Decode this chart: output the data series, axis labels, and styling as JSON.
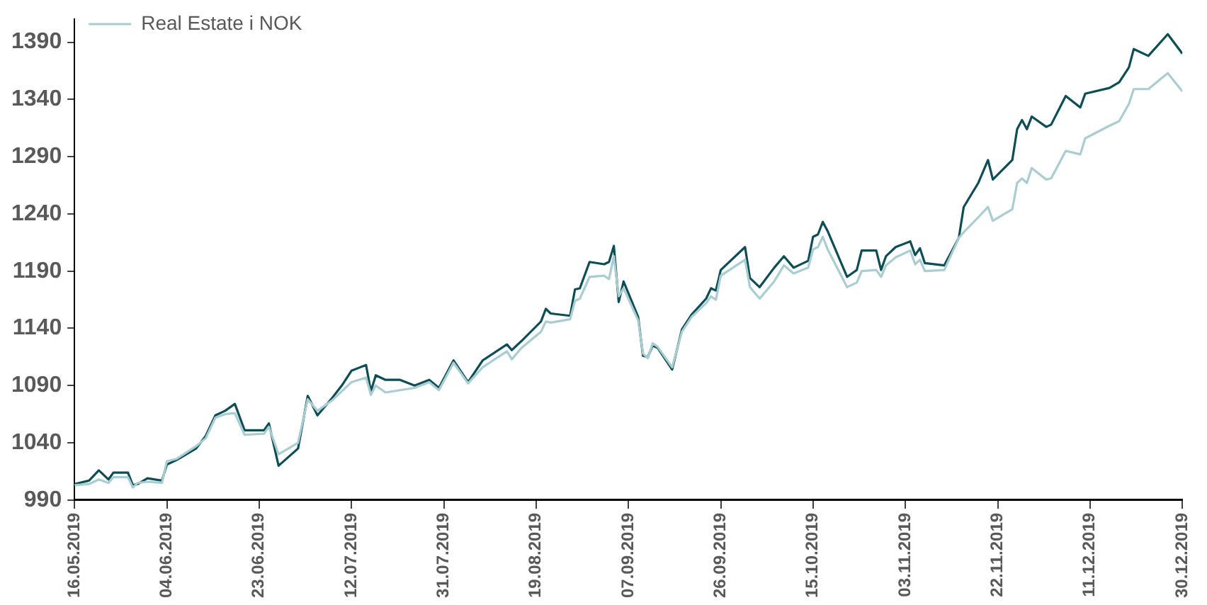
{
  "chart_data": {
    "type": "line",
    "x": [
      "2019-05-16",
      "2019-05-19",
      "2019-05-21",
      "2019-05-23",
      "2019-05-24",
      "2019-05-27",
      "2019-05-28",
      "2019-05-29",
      "2019-05-31",
      "2019-06-03",
      "2019-06-04",
      "2019-06-06",
      "2019-06-10",
      "2019-06-12",
      "2019-06-14",
      "2019-06-16",
      "2019-06-18",
      "2019-06-20",
      "2019-06-24",
      "2019-06-25",
      "2019-06-27",
      "2019-07-01",
      "2019-07-03",
      "2019-07-05",
      "2019-07-08",
      "2019-07-10",
      "2019-07-12",
      "2019-07-15",
      "2019-07-16",
      "2019-07-17",
      "2019-07-19",
      "2019-07-22",
      "2019-07-25",
      "2019-07-28",
      "2019-07-30",
      "2019-08-02",
      "2019-08-05",
      "2019-08-08",
      "2019-08-13",
      "2019-08-14",
      "2019-08-16",
      "2019-08-20",
      "2019-08-21",
      "2019-08-22",
      "2019-08-26",
      "2019-08-27",
      "2019-08-28",
      "2019-08-30",
      "2019-09-02",
      "2019-09-03",
      "2019-09-04",
      "2019-09-05",
      "2019-09-06",
      "2019-09-09",
      "2019-09-10",
      "2019-09-11",
      "2019-09-12",
      "2019-09-13",
      "2019-09-16",
      "2019-09-18",
      "2019-09-20",
      "2019-09-23",
      "2019-09-24",
      "2019-09-25",
      "2019-09-26",
      "2019-10-01",
      "2019-10-02",
      "2019-10-04",
      "2019-10-07",
      "2019-10-09",
      "2019-10-11",
      "2019-10-14",
      "2019-10-15",
      "2019-10-16",
      "2019-10-17",
      "2019-10-18",
      "2019-10-22",
      "2019-10-24",
      "2019-10-25",
      "2019-10-28",
      "2019-10-29",
      "2019-10-30",
      "2019-11-01",
      "2019-11-04",
      "2019-11-05",
      "2019-11-06",
      "2019-11-07",
      "2019-11-11",
      "2019-11-14",
      "2019-11-15",
      "2019-11-18",
      "2019-11-20",
      "2019-11-21",
      "2019-11-25",
      "2019-11-26",
      "2019-11-27",
      "2019-11-28",
      "2019-11-29",
      "2019-12-02",
      "2019-12-03",
      "2019-12-06",
      "2019-12-09",
      "2019-12-10",
      "2019-12-15",
      "2019-12-17",
      "2019-12-19",
      "2019-12-20",
      "2019-12-23",
      "2019-12-27",
      "2019-12-30"
    ],
    "series": [
      {
        "color": "#0d4d56",
        "values": [
          1004,
          1007,
          1016,
          1008,
          1014,
          1014,
          1003,
          1004,
          1009,
          1007,
          1021,
          1025,
          1035,
          1046,
          1064,
          1068,
          1074,
          1051,
          1051,
          1057,
          1020,
          1035,
          1081,
          1064,
          1079,
          1090,
          1103,
          1108,
          1085,
          1099,
          1095,
          1095,
          1090,
          1095,
          1088,
          1112,
          1093,
          1112,
          1126,
          1121,
          1129,
          1146,
          1157,
          1153,
          1151,
          1174,
          1175,
          1198,
          1196,
          1198,
          1212,
          1163,
          1181,
          1150,
          1116,
          1115,
          1125,
          1123,
          1104,
          1139,
          1152,
          1166,
          1175,
          1173,
          1191,
          1211,
          1184,
          1176,
          1193,
          1203,
          1193,
          1199,
          1220,
          1222,
          1233,
          1225,
          1185,
          1191,
          1208,
          1208,
          1191,
          1203,
          1211,
          1216,
          1204,
          1210,
          1197,
          1195,
          1219,
          1246,
          1267,
          1287,
          1270,
          1287,
          1314,
          1322,
          1314,
          1325,
          1316,
          1318,
          1343,
          1333,
          1345,
          1350,
          1355,
          1368,
          1384,
          1378,
          1397,
          1380
        ]
      },
      {
        "name": "Real Estate i NOK",
        "color": "#a9cdd0",
        "values": [
          1003,
          1004,
          1008,
          1005,
          1010,
          1010,
          1001,
          1005,
          1006,
          1005,
          1024,
          1026,
          1037,
          1044,
          1062,
          1065,
          1066,
          1047,
          1048,
          1054,
          1030,
          1040,
          1078,
          1068,
          1077,
          1085,
          1093,
          1097,
          1082,
          1090,
          1084,
          1086,
          1088,
          1093,
          1086,
          1110,
          1092,
          1106,
          1120,
          1113,
          1123,
          1137,
          1146,
          1145,
          1148,
          1164,
          1166,
          1185,
          1186,
          1183,
          1203,
          1168,
          1175,
          1147,
          1118,
          1114,
          1127,
          1124,
          1106,
          1137,
          1150,
          1162,
          1168,
          1165,
          1186,
          1200,
          1176,
          1166,
          1181,
          1195,
          1188,
          1193,
          1209,
          1211,
          1220,
          1209,
          1176,
          1180,
          1190,
          1191,
          1185,
          1195,
          1202,
          1208,
          1196,
          1200,
          1190,
          1191,
          1219,
          1224,
          1237,
          1246,
          1234,
          1244,
          1267,
          1271,
          1267,
          1280,
          1270,
          1271,
          1295,
          1292,
          1306,
          1317,
          1321,
          1336,
          1349,
          1349,
          1363,
          1347
        ]
      }
    ],
    "xlim": [
      "2019-05-16",
      "2019-12-30"
    ],
    "xticks": [
      {
        "value": "2019-05-16",
        "label": "16.05.2019"
      },
      {
        "value": "2019-06-04",
        "label": "04.06.2019"
      },
      {
        "value": "2019-06-23",
        "label": "23.06.2019"
      },
      {
        "value": "2019-07-12",
        "label": "12.07.2019"
      },
      {
        "value": "2019-07-31",
        "label": "31.07.2019"
      },
      {
        "value": "2019-08-19",
        "label": "19.08.2019"
      },
      {
        "value": "2019-09-07",
        "label": "07.09.2019"
      },
      {
        "value": "2019-09-26",
        "label": "26.09.2019"
      },
      {
        "value": "2019-10-15",
        "label": "15.10.2019"
      },
      {
        "value": "2019-11-03",
        "label": "03.11.2019"
      },
      {
        "value": "2019-11-22",
        "label": "22.11.2019"
      },
      {
        "value": "2019-12-11",
        "label": "11.12.2019"
      },
      {
        "value": "2019-12-30",
        "label": "30.12.2019"
      }
    ],
    "ylim": [
      990,
      1410
    ],
    "yticks": [
      990,
      1040,
      1090,
      1140,
      1190,
      1240,
      1290,
      1340,
      1390
    ],
    "grid": false,
    "legend": "top left",
    "marker": "none",
    "line_style": "solid"
  }
}
